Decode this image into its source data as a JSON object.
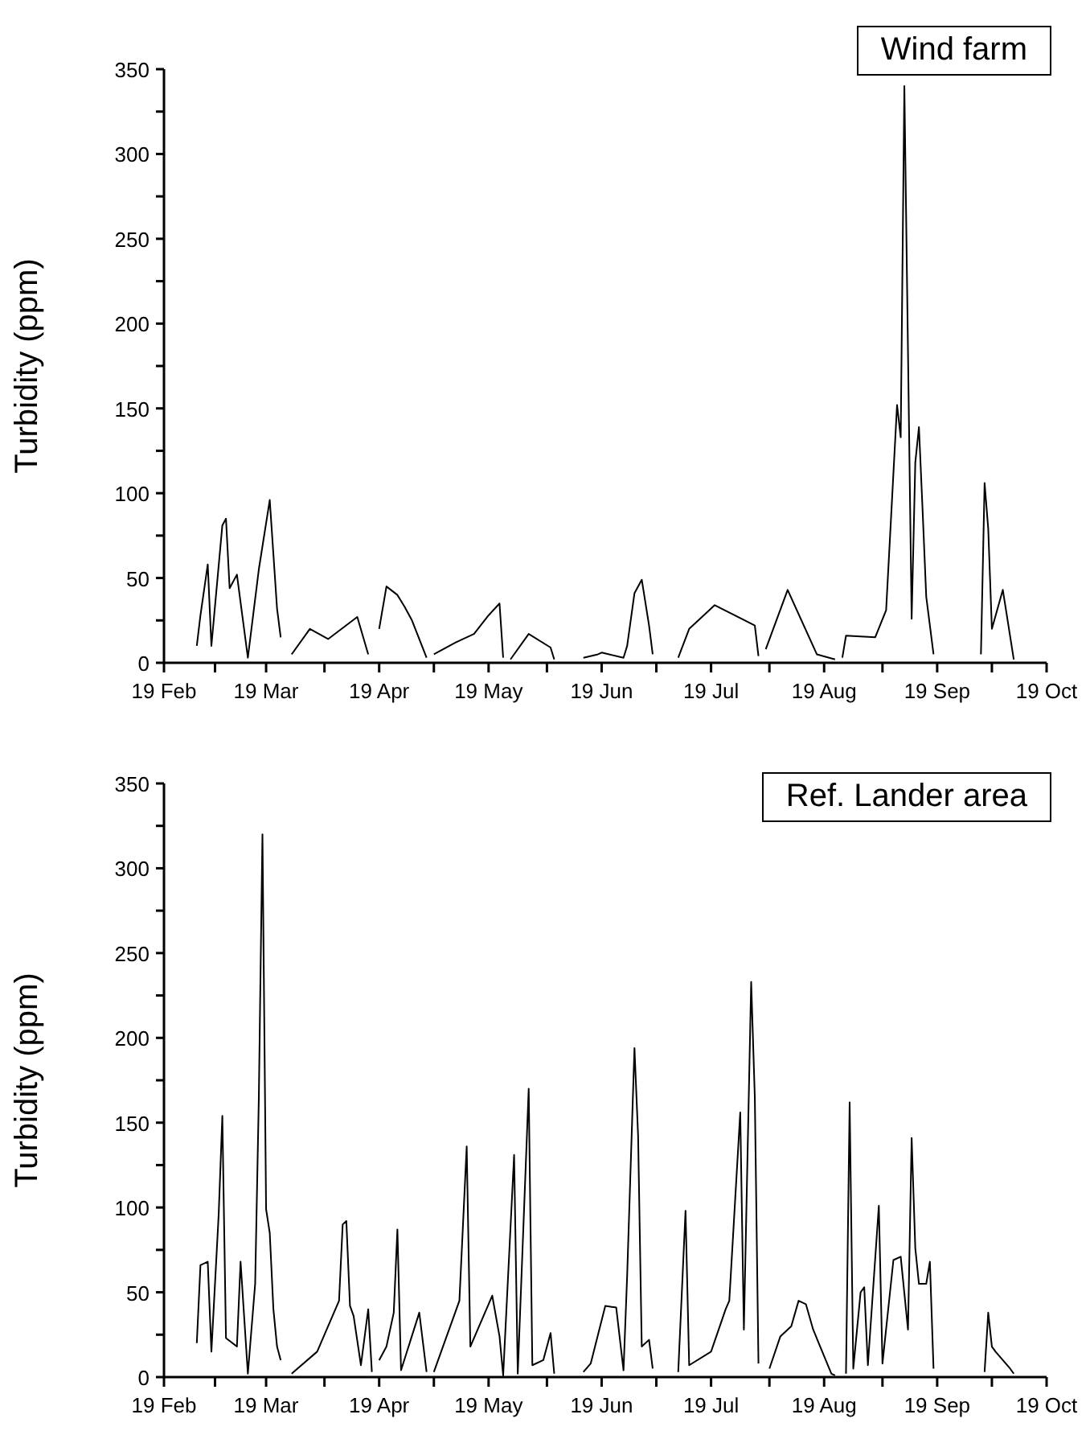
{
  "chart_data": [
    {
      "type": "line",
      "ylabel": "Turbidity (ppm)",
      "annotations": [
        "Wind farm"
      ],
      "x": [
        "--02-28",
        "--03-01",
        "--03-03",
        "--03-04",
        "--03-07",
        "--03-08",
        "--03-09",
        "--03-11",
        "--03-14",
        "--03-17",
        "--03-20",
        "--03-22",
        "--03-23",
        "--03-24",
        "--03-26",
        "--03-31",
        "--04-05",
        "--04-13",
        "--04-16",
        "--04-17",
        "--04-19",
        "--04-21",
        "--04-24",
        "--04-26",
        "--04-28",
        "--05-02",
        "--05-03",
        "--05-04",
        "--05-10",
        "--05-15",
        "--05-19",
        "--05-22",
        "--05-23",
        "--05-24",
        "--05-25",
        "--05-30",
        "--06-05",
        "--06-06",
        "--06-10",
        "--06-14",
        "--06-18",
        "--06-19",
        "--06-25",
        "--06-26",
        "--06-28",
        "--06-30",
        "--07-02",
        "--07-03",
        "--07-06",
        "--07-10",
        "--07-13",
        "--07-20",
        "--07-31",
        "--08-01",
        "--08-02",
        "--08-03",
        "--08-09",
        "--08-17",
        "--08-22",
        "--08-23",
        "--08-24",
        "--08-25",
        "--09-02",
        "--09-05",
        "--09-08",
        "--09-09",
        "--09-10",
        "--09-12",
        "--09-13",
        "--09-14",
        "--09-15",
        "--09-16",
        "--09-18",
        "--09-25",
        "--10-01",
        "--10-02",
        "--10-03",
        "--10-04",
        "--10-07",
        "--10-10"
      ],
      "series": [
        {
          "color": "#000000",
          "values": [
            10,
            28,
            58,
            10,
            81,
            85,
            44,
            52,
            3,
            55,
            96,
            32,
            15,
            null,
            5,
            20,
            14,
            27,
            5,
            null,
            20,
            45,
            40,
            33,
            25,
            3,
            null,
            5,
            12,
            17,
            28,
            35,
            3,
            null,
            2,
            17,
            9,
            2,
            null,
            3,
            5,
            6,
            3,
            10,
            41,
            49,
            22,
            5,
            null,
            3,
            20,
            34,
            22,
            4,
            null,
            8,
            43,
            5,
            2,
            null,
            3,
            16,
            15,
            31,
            152,
            133,
            340,
            26,
            118,
            139,
            90,
            39,
            5,
            null,
            5,
            106,
            79,
            20,
            43,
            2
          ]
        }
      ],
      "xlim": [
        "--02-19",
        "--10-19"
      ],
      "xticks": [
        {
          "value": "--02-19",
          "label": "19 Feb"
        },
        {
          "value": "--03-05",
          "label": null
        },
        {
          "value": "--03-19",
          "label": "19 Mar"
        },
        {
          "value": "--04-04",
          "label": null
        },
        {
          "value": "--04-19",
          "label": "19 Apr"
        },
        {
          "value": "--05-04",
          "label": null
        },
        {
          "value": "--05-19",
          "label": "19 May"
        },
        {
          "value": "--06-04",
          "label": null
        },
        {
          "value": "--06-19",
          "label": "19 Jun"
        },
        {
          "value": "--07-04",
          "label": null
        },
        {
          "value": "--07-19",
          "label": "19 Jul"
        },
        {
          "value": "--08-04",
          "label": null
        },
        {
          "value": "--08-19",
          "label": "19 Aug"
        },
        {
          "value": "--09-04",
          "label": null
        },
        {
          "value": "--09-19",
          "label": "19 Sep"
        },
        {
          "value": "--10-04",
          "label": null
        },
        {
          "value": "--10-19",
          "label": "19 Oct"
        }
      ],
      "ylim": [
        0,
        350
      ],
      "yticks": [
        0,
        {
          "value": 25,
          "label": null
        },
        50,
        {
          "value": 75,
          "label": null
        },
        100,
        {
          "value": 125,
          "label": null
        },
        150,
        {
          "value": 175,
          "label": null
        },
        200,
        {
          "value": 225,
          "label": null
        },
        250,
        {
          "value": 275,
          "label": null
        },
        300,
        {
          "value": 325,
          "label": null
        },
        350
      ]
    },
    {
      "type": "line",
      "ylabel": "Turbidity (ppm)",
      "annotations": [
        "Ref. Lander area"
      ],
      "x": [
        "--02-28",
        "--03-01",
        "--03-03",
        "--03-04",
        "--03-06",
        "--03-07",
        "--03-08",
        "--03-11",
        "--03-12",
        "--03-14",
        "--03-16",
        "--03-17",
        "--03-18",
        "--03-19",
        "--03-20",
        "--03-21",
        "--03-22",
        "--03-23",
        "--03-24",
        "--03-26",
        "--04-02",
        "--04-08",
        "--04-09",
        "--04-10",
        "--04-11",
        "--04-12",
        "--04-14",
        "--04-16",
        "--04-17",
        "--04-18",
        "--04-19",
        "--04-21",
        "--04-23",
        "--04-24",
        "--04-25",
        "--04-30",
        "--05-02",
        "--05-03",
        "--05-04",
        "--05-11",
        "--05-13",
        "--05-14",
        "--05-20",
        "--05-22",
        "--05-23",
        "--05-26",
        "--05-27",
        "--05-30",
        "--05-31",
        "--06-03",
        "--06-05",
        "--06-06",
        "--06-10",
        "--06-14",
        "--06-16",
        "--06-20",
        "--06-23",
        "--06-25",
        "--06-26",
        "--06-28",
        "--06-29",
        "--06-30",
        "--07-02",
        "--07-03",
        "--07-06",
        "--07-10",
        "--07-12",
        "--07-13",
        "--07-19",
        "--07-23",
        "--07-24",
        "--07-27",
        "--07-28",
        "--07-30",
        "--07-31",
        "--08-01",
        "--08-02",
        "--08-04",
        "--08-07",
        "--08-10",
        "--08-12",
        "--08-14",
        "--08-16",
        "--08-21",
        "--08-22",
        "--08-23",
        "--08-25",
        "--08-26",
        "--08-27",
        "--08-29",
        "--08-30",
        "--08-31",
        "--09-03",
        "--09-04",
        "--09-07",
        "--09-09",
        "--09-11",
        "--09-12",
        "--09-13",
        "--09-14",
        "--09-16",
        "--09-17",
        "--09-18",
        "--09-25",
        "--10-02",
        "--10-03",
        "--10-04",
        "--10-05",
        "--10-09",
        "--10-10"
      ],
      "series": [
        {
          "color": "#000000",
          "values": [
            20,
            66,
            68,
            15,
            96,
            154,
            23,
            18,
            68,
            2,
            55,
            164,
            320,
            99,
            85,
            40,
            18,
            10,
            null,
            2,
            15,
            45,
            90,
            92,
            42,
            36,
            7,
            40,
            3,
            null,
            10,
            18,
            38,
            87,
            4,
            38,
            3,
            null,
            3,
            45,
            136,
            18,
            48,
            24,
            1,
            131,
            2,
            170,
            7,
            10,
            26,
            2,
            null,
            3,
            8,
            42,
            41,
            4,
            60,
            194,
            142,
            18,
            22,
            5,
            null,
            3,
            98,
            7,
            15,
            40,
            45,
            156,
            28,
            233,
            165,
            8,
            null,
            5,
            24,
            30,
            45,
            43,
            28,
            2,
            1,
            null,
            2,
            162,
            5,
            50,
            53,
            7,
            101,
            8,
            69,
            71,
            28,
            141,
            76,
            55,
            55,
            68,
            5,
            null,
            3,
            38,
            18,
            15,
            5,
            2
          ]
        }
      ],
      "xlim": [
        "--02-19",
        "--10-19"
      ],
      "xticks": [
        {
          "value": "--02-19",
          "label": "19 Feb"
        },
        {
          "value": "--03-05",
          "label": null
        },
        {
          "value": "--03-19",
          "label": "19 Mar"
        },
        {
          "value": "--04-04",
          "label": null
        },
        {
          "value": "--04-19",
          "label": "19 Apr"
        },
        {
          "value": "--05-04",
          "label": null
        },
        {
          "value": "--05-19",
          "label": "19 May"
        },
        {
          "value": "--06-04",
          "label": null
        },
        {
          "value": "--06-19",
          "label": "19 Jun"
        },
        {
          "value": "--07-04",
          "label": null
        },
        {
          "value": "--07-19",
          "label": "19 Jul"
        },
        {
          "value": "--08-04",
          "label": null
        },
        {
          "value": "--08-19",
          "label": "19 Aug"
        },
        {
          "value": "--09-04",
          "label": null
        },
        {
          "value": "--09-19",
          "label": "19 Sep"
        },
        {
          "value": "--10-04",
          "label": null
        },
        {
          "value": "--10-19",
          "label": "19 Oct"
        }
      ],
      "ylim": [
        0,
        350
      ],
      "yticks": [
        0,
        {
          "value": 25,
          "label": null
        },
        50,
        {
          "value": 75,
          "label": null
        },
        100,
        {
          "value": 125,
          "label": null
        },
        150,
        {
          "value": 175,
          "label": null
        },
        200,
        {
          "value": 225,
          "label": null
        },
        250,
        {
          "value": 275,
          "label": null
        },
        300,
        {
          "value": 325,
          "label": null
        },
        350
      ]
    }
  ]
}
